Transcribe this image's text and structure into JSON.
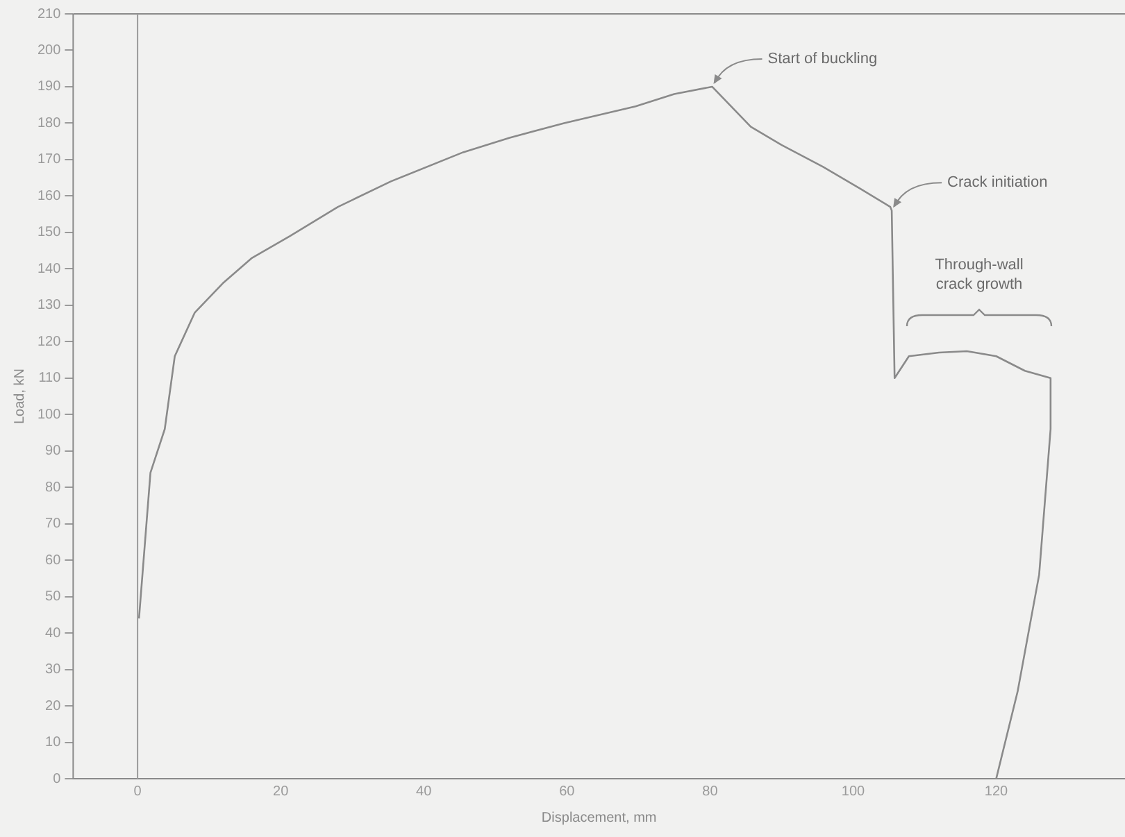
{
  "chart_data": {
    "type": "line",
    "xlabel": "Displacement, mm",
    "ylabel": "Load, kN",
    "xlim": [
      -9,
      138
    ],
    "xticks": [
      0,
      20,
      40,
      60,
      80,
      100,
      120
    ],
    "ylim": [
      0,
      210
    ],
    "yticks": [
      0,
      10,
      20,
      30,
      40,
      50,
      60,
      70,
      80,
      90,
      100,
      110,
      120,
      130,
      140,
      150,
      160,
      170,
      180,
      190,
      200,
      210
    ],
    "grid": false,
    "legend": false,
    "marker": "none",
    "line_style": "solid",
    "series": [
      {
        "color": "#8a8a8a",
        "x": [
          0.2,
          1.8,
          3.8,
          5.2,
          8,
          11.9,
          16,
          21.3,
          28,
          35.4,
          45.5,
          52,
          59.6,
          69.6,
          75,
          80.3,
          85.7,
          90,
          95.8,
          101,
          105.2,
          105.4,
          105.8,
          107.8,
          112,
          115.9,
          120,
          124,
          127.6,
          127.6,
          126,
          123,
          120
        ],
        "values": [
          44,
          84,
          96,
          116,
          128,
          136,
          143,
          149,
          157,
          164,
          172,
          176,
          180,
          184.6,
          188,
          190,
          179,
          174,
          168,
          162,
          157,
          156,
          110,
          116,
          117,
          117.4,
          116,
          112,
          110,
          96,
          56,
          24,
          0
        ]
      }
    ],
    "ref_lines": [
      {
        "axis": "x",
        "value": 0,
        "color": "#9a9a9a"
      }
    ],
    "annotations": [
      {
        "text": "Start of buckling",
        "x": 80.3,
        "y": 190
      },
      {
        "text": "Crack initiation",
        "x": 105.4,
        "y": 156
      },
      "Through-wall crack growth"
    ]
  }
}
